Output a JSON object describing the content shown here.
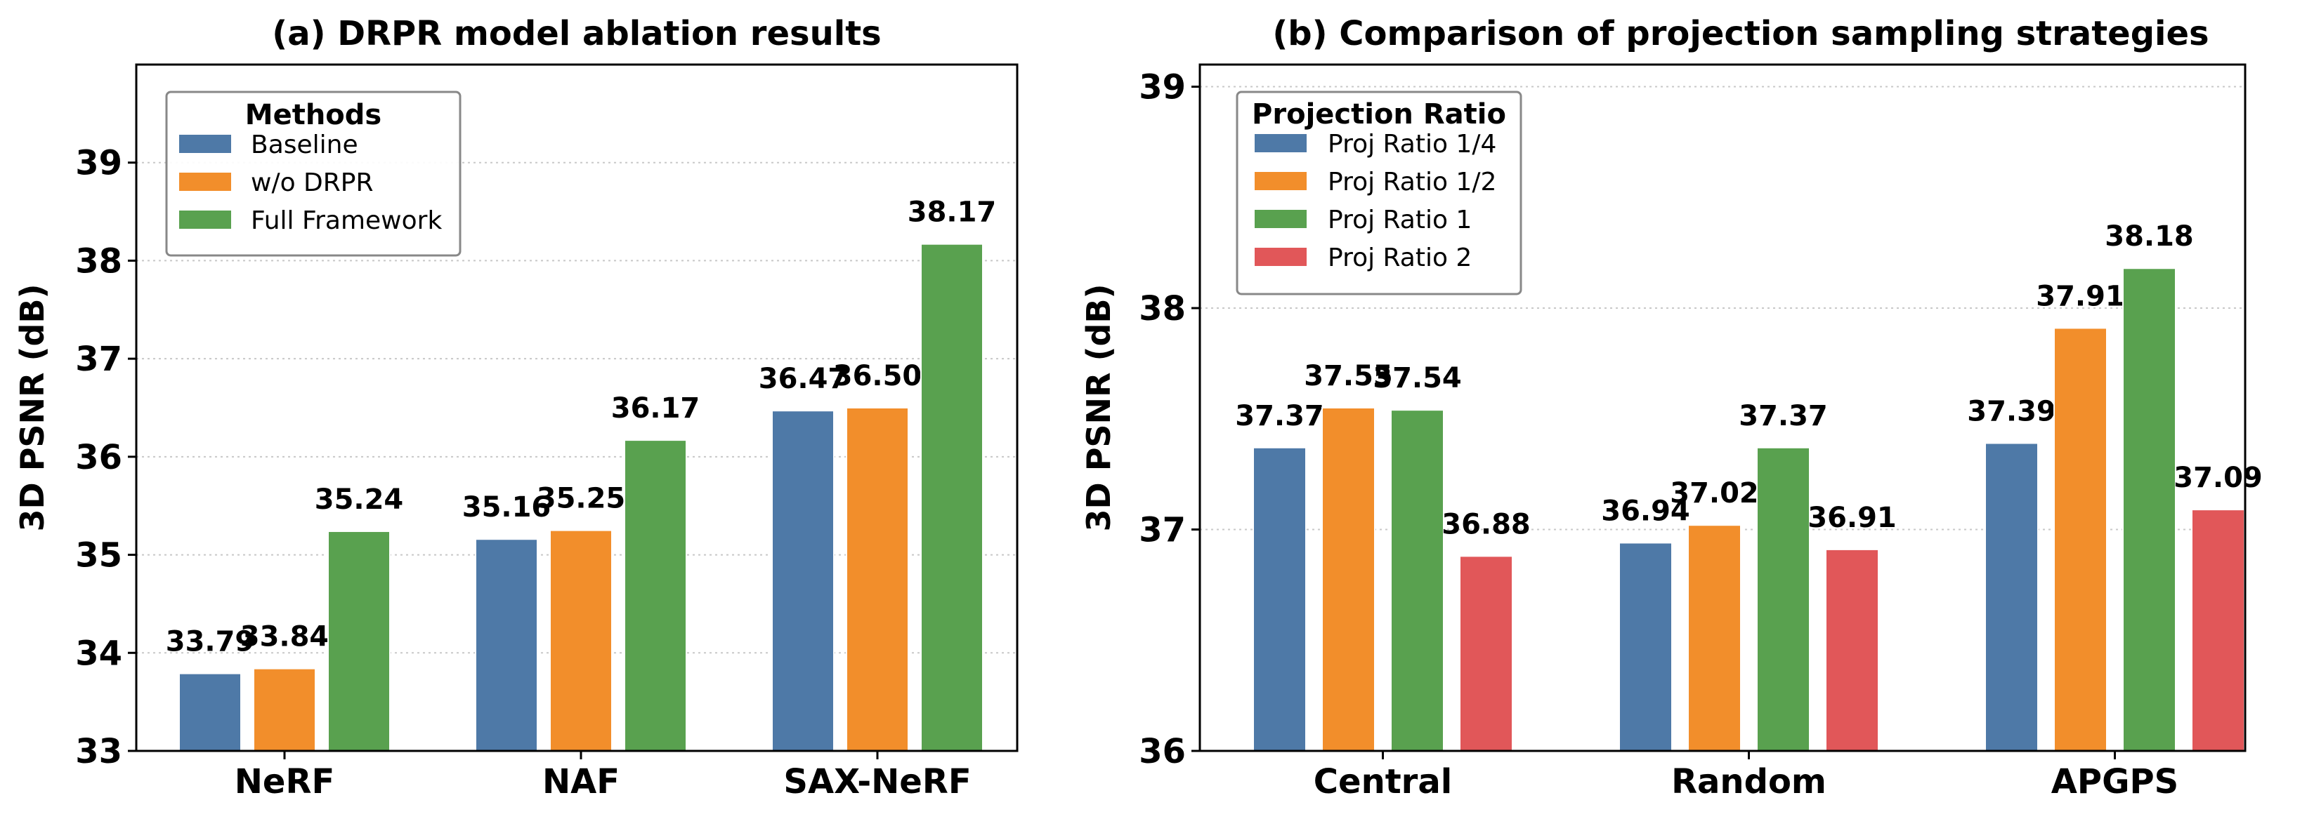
{
  "chart_data": [
    {
      "type": "bar",
      "title": "(a) DRPR model ablation results",
      "xlabel": "",
      "ylabel": "3D PSNR (dB)",
      "ylim": [
        33,
        40
      ],
      "yticks": [
        "33",
        "34",
        "35",
        "36",
        "37",
        "38",
        "39"
      ],
      "grid": "horizontal dotted",
      "categories": [
        "NeRF",
        "NAF",
        "SAX-NeRF"
      ],
      "legend": {
        "title": "Methods",
        "position": "top-left"
      },
      "series": [
        {
          "name": "Baseline",
          "color": "#4e79a7",
          "values": [
            33.79,
            35.16,
            36.47
          ],
          "labels": [
            "33.79",
            "35.16",
            "36.47"
          ]
        },
        {
          "name": "w/o DRPR",
          "color": "#f28e2b",
          "values": [
            33.84,
            35.25,
            36.5
          ],
          "labels": [
            "33.84",
            "35.25",
            "36.50"
          ]
        },
        {
          "name": "Full Framework",
          "color": "#59a14f",
          "values": [
            35.24,
            36.17,
            38.17
          ],
          "labels": [
            "35.24",
            "36.17",
            "38.17"
          ]
        }
      ]
    },
    {
      "type": "bar",
      "title": "(b) Comparison of projection sampling strategies",
      "xlabel": "",
      "ylabel": "3D PSNR (dB)",
      "ylim": [
        36,
        39.1
      ],
      "yticks": [
        "36",
        "37",
        "38",
        "39"
      ],
      "grid": "horizontal dotted",
      "categories": [
        "Central",
        "Random",
        "APGPS"
      ],
      "legend": {
        "title": "Projection Ratio",
        "position": "top-left"
      },
      "series": [
        {
          "name": "Proj Ratio 1/4",
          "color": "#4e79a7",
          "values": [
            37.37,
            36.94,
            37.39
          ],
          "labels": [
            "37.37",
            "36.94",
            "37.39"
          ]
        },
        {
          "name": "Proj Ratio 1/2",
          "color": "#f28e2b",
          "values": [
            37.55,
            37.02,
            37.91
          ],
          "labels": [
            "37.55",
            "37.02",
            "37.91"
          ]
        },
        {
          "name": "Proj Ratio 1",
          "color": "#59a14f",
          "values": [
            37.54,
            37.37,
            38.18
          ],
          "labels": [
            "37.54",
            "37.37",
            "38.18"
          ]
        },
        {
          "name": "Proj Ratio 2",
          "color": "#e15759",
          "values": [
            36.88,
            36.91,
            37.09
          ],
          "labels": [
            "36.88",
            "36.91",
            "37.09"
          ]
        }
      ]
    }
  ]
}
